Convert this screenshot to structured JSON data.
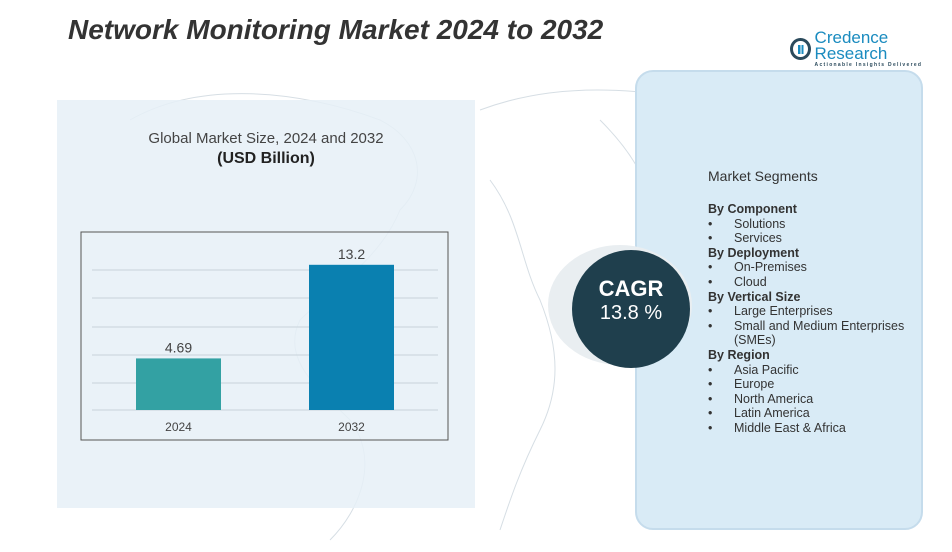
{
  "title": "Network Monitoring Market 2024 to 2032",
  "logo": {
    "name": "Credence Research",
    "tagline": "Actionable Insights Delivered"
  },
  "colors": {
    "bar_2024": "#33a1a3",
    "bar_2032": "#0a80b0",
    "cagr_bg": "#1f3f4d",
    "panel": "#d9ebf6"
  },
  "chart_data": {
    "type": "bar",
    "title": "Global Market Size, 2024 and 2032",
    "unit": "(USD Billion)",
    "categories": [
      "2024",
      "2032"
    ],
    "values": [
      4.69,
      13.2
    ],
    "data_labels": [
      "4.69",
      "13.2"
    ],
    "grid": true,
    "legend": "none"
  },
  "cagr": {
    "label": "CAGR",
    "value": "13.8   %"
  },
  "segments": {
    "title": "Market Segments",
    "groups": [
      {
        "heading": "By    Component",
        "items": [
          "Solutions",
          "Services"
        ]
      },
      {
        "heading": "By Deployment",
        "items": [
          "On-Premises",
          "Cloud"
        ]
      },
      {
        "heading": "By  Vertical Size",
        "items": [
          "Large Enterprises",
          "Small and Medium Enterprises (SMEs)"
        ]
      },
      {
        "heading": "By Region",
        "items": [
          "Asia Pacific",
          "Europe",
          "North America",
          "Latin America",
          "Middle East & Africa"
        ]
      }
    ]
  }
}
